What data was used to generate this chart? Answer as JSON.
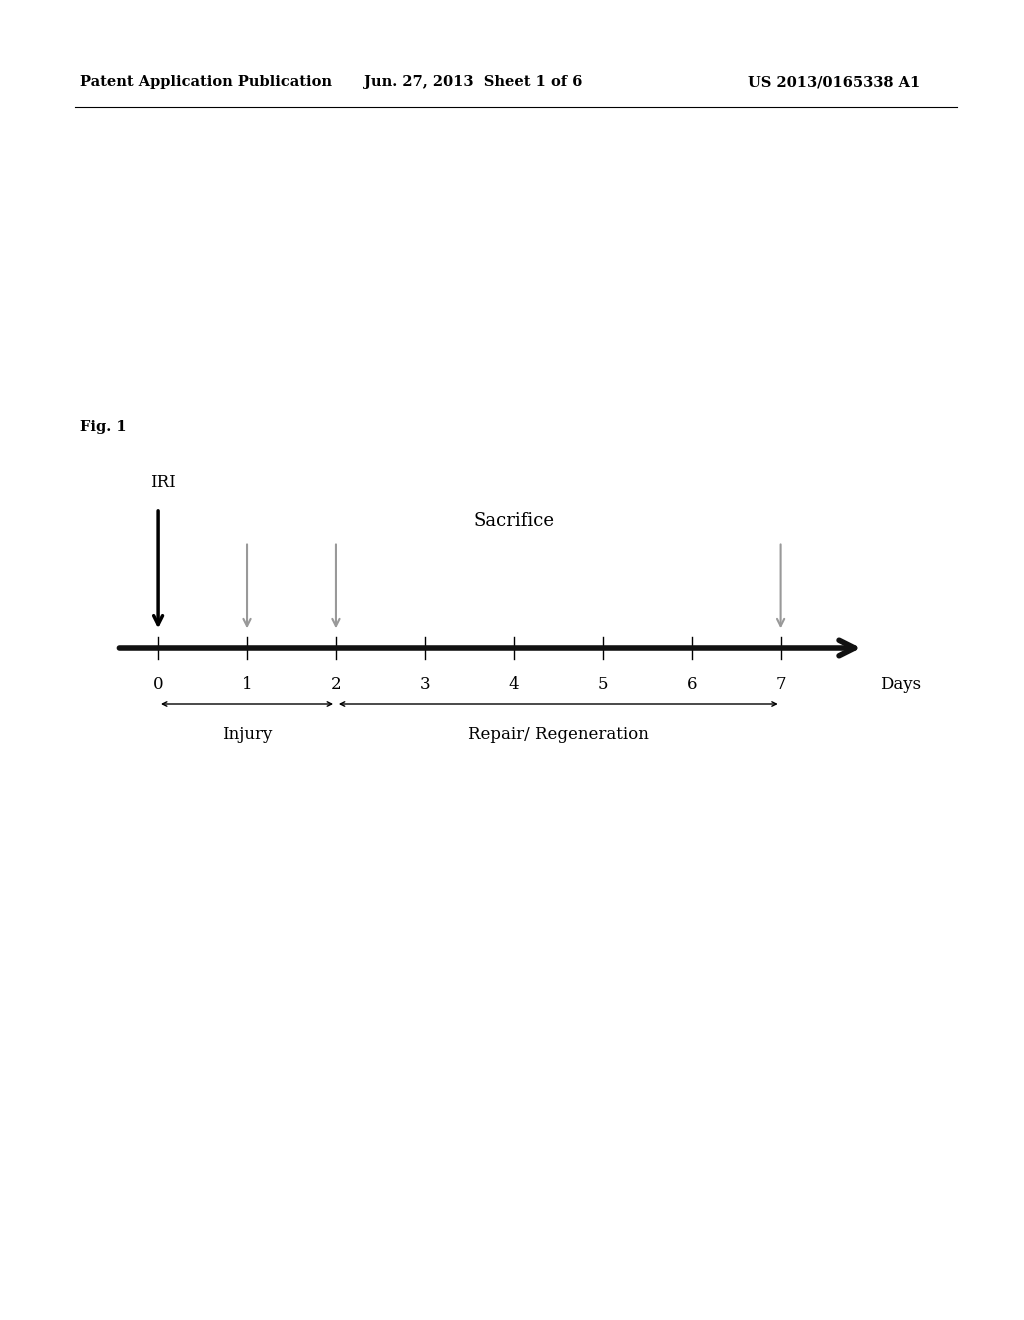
{
  "background_color": "#ffffff",
  "header_left": "Patent Application Publication",
  "header_center": "Jun. 27, 2013  Sheet 1 of 6",
  "header_right": "US 2013/0165338 A1",
  "header_fontsize": 10.5,
  "fig_label": "Fig. 1",
  "fig_label_fontsize": 10.5,
  "timeline_ticks": [
    0,
    1,
    2,
    3,
    4,
    5,
    6,
    7
  ],
  "timeline_label": "Days",
  "iri_label": "IRI",
  "sacrifice_label": "Sacrifice",
  "injury_label": "Injury",
  "repair_label": "Repair/ Regeneration",
  "black_arrows": [
    0
  ],
  "gray_arrows": [
    1,
    2,
    7
  ],
  "main_arrow_color": "#111111",
  "gray_arrow_color": "#999999"
}
